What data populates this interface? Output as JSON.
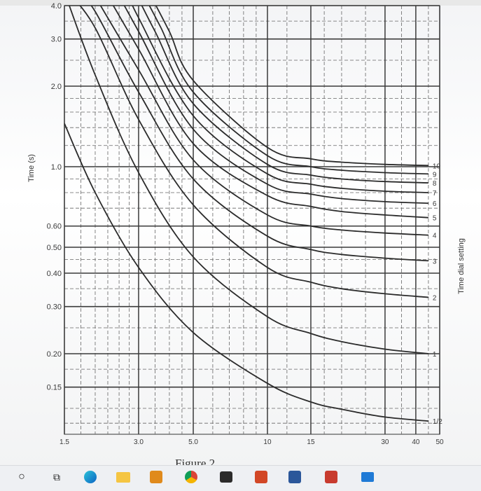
{
  "chart_data": {
    "type": "line",
    "xscale": "log",
    "yscale": "log",
    "xlim": [
      1.5,
      50
    ],
    "ylim": [
      0.1,
      4.0
    ],
    "ylabel": "Time (s)",
    "right_label": "Time dial setting",
    "caption": "Figure 2",
    "x_tick_labels": [
      "1.5",
      "3.0",
      "5.0",
      "10",
      "15",
      "30",
      "40",
      "50"
    ],
    "x_tick_values": [
      1.5,
      3.0,
      5.0,
      10,
      15,
      30,
      40,
      50
    ],
    "y_tick_labels": [
      "4.0",
      "3.0",
      "2.0",
      "1.0",
      "0.60",
      "0.50",
      "0.40",
      "0.30",
      "0.20",
      "0.15"
    ],
    "y_tick_values": [
      4.0,
      3.0,
      2.0,
      1.0,
      0.6,
      0.5,
      0.4,
      0.3,
      0.2,
      0.15
    ],
    "series": [
      {
        "name": "1/2",
        "label": "1/2",
        "points": [
          [
            1.5,
            1.45
          ],
          [
            2.0,
            0.8
          ],
          [
            3.0,
            0.42
          ],
          [
            5.0,
            0.24
          ],
          [
            10,
            0.155
          ],
          [
            15,
            0.132
          ],
          [
            20,
            0.124
          ],
          [
            30,
            0.116
          ],
          [
            45,
            0.112
          ]
        ]
      },
      {
        "name": "1",
        "label": "1",
        "points": [
          [
            1.5,
            4.5
          ],
          [
            2.0,
            2.2
          ],
          [
            3.0,
            0.95
          ],
          [
            5.0,
            0.46
          ],
          [
            10,
            0.275
          ],
          [
            15,
            0.238
          ],
          [
            20,
            0.222
          ],
          [
            30,
            0.208
          ],
          [
            45,
            0.2
          ]
        ]
      },
      {
        "name": "2",
        "label": "2",
        "points": [
          [
            1.55,
            4.5
          ],
          [
            2.0,
            3.3
          ],
          [
            3.0,
            1.5
          ],
          [
            5.0,
            0.72
          ],
          [
            10,
            0.42
          ],
          [
            15,
            0.37
          ],
          [
            20,
            0.35
          ],
          [
            30,
            0.335
          ],
          [
            45,
            0.325
          ]
        ]
      },
      {
        "name": "3",
        "label": "3",
        "points": [
          [
            1.7,
            4.5
          ],
          [
            2.0,
            3.8
          ],
          [
            3.0,
            1.9
          ],
          [
            5.0,
            0.9
          ],
          [
            10,
            0.55
          ],
          [
            15,
            0.49
          ],
          [
            20,
            0.47
          ],
          [
            30,
            0.455
          ],
          [
            45,
            0.445
          ]
        ]
      },
      {
        "name": "4",
        "label": "4",
        "points": [
          [
            1.95,
            4.5
          ],
          [
            3.0,
            2.3
          ],
          [
            5.0,
            1.06
          ],
          [
            10,
            0.66
          ],
          [
            15,
            0.6
          ],
          [
            20,
            0.58
          ],
          [
            30,
            0.565
          ],
          [
            45,
            0.555
          ]
        ]
      },
      {
        "name": "5",
        "label": "5",
        "points": [
          [
            2.2,
            4.5
          ],
          [
            3.0,
            2.75
          ],
          [
            5.0,
            1.22
          ],
          [
            10,
            0.78
          ],
          [
            15,
            0.71
          ],
          [
            20,
            0.68
          ],
          [
            30,
            0.66
          ],
          [
            45,
            0.645
          ]
        ]
      },
      {
        "name": "6",
        "label": "6",
        "points": [
          [
            2.45,
            4.5
          ],
          [
            3.0,
            3.2
          ],
          [
            5.0,
            1.38
          ],
          [
            10,
            0.86
          ],
          [
            15,
            0.79
          ],
          [
            20,
            0.76
          ],
          [
            30,
            0.74
          ],
          [
            45,
            0.73
          ]
        ]
      },
      {
        "name": "7",
        "label": "7",
        "points": [
          [
            2.7,
            4.5
          ],
          [
            3.0,
            3.6
          ],
          [
            5.0,
            1.55
          ],
          [
            10,
            0.94
          ],
          [
            15,
            0.86
          ],
          [
            20,
            0.83
          ],
          [
            30,
            0.81
          ],
          [
            45,
            0.8
          ]
        ]
      },
      {
        "name": "8",
        "label": "8",
        "points": [
          [
            2.9,
            4.5
          ],
          [
            3.5,
            3.2
          ],
          [
            5.0,
            1.72
          ],
          [
            10,
            1.02
          ],
          [
            15,
            0.93
          ],
          [
            20,
            0.9
          ],
          [
            30,
            0.88
          ],
          [
            45,
            0.87
          ]
        ]
      },
      {
        "name": "9",
        "label": "9",
        "points": [
          [
            3.1,
            4.5
          ],
          [
            3.7,
            3.3
          ],
          [
            5.0,
            1.9
          ],
          [
            10,
            1.1
          ],
          [
            15,
            1.0
          ],
          [
            20,
            0.97
          ],
          [
            30,
            0.95
          ],
          [
            45,
            0.94
          ]
        ]
      },
      {
        "name": "10",
        "label": "10",
        "points": [
          [
            3.3,
            4.5
          ],
          [
            4.0,
            3.2
          ],
          [
            5.0,
            2.1
          ],
          [
            10,
            1.18
          ],
          [
            15,
            1.07
          ],
          [
            20,
            1.04
          ],
          [
            30,
            1.02
          ],
          [
            45,
            1.01
          ]
        ]
      }
    ]
  }
}
